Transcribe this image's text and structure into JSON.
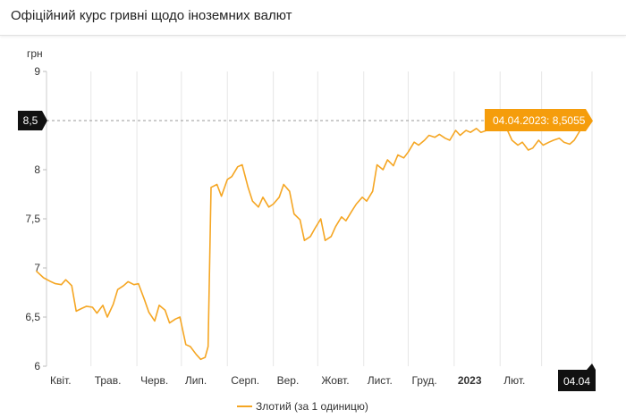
{
  "title": "Офіційний курс гривні щодо іноземних валют",
  "colors": {
    "line": "#f5a623",
    "tooltip": "#f59d0c",
    "marker": "#111111"
  },
  "chart_data": {
    "type": "line",
    "ylabel": "грн",
    "ylim": [
      6,
      9
    ],
    "yticks": [
      {
        "value": 6,
        "label": "6"
      },
      {
        "value": 6.5,
        "label": "6,5"
      },
      {
        "value": 7,
        "label": "7"
      },
      {
        "value": 7.5,
        "label": "7,5"
      },
      {
        "value": 8,
        "label": "8"
      },
      {
        "value": 8.5,
        "label": "8,5"
      },
      {
        "value": 9,
        "label": "9"
      }
    ],
    "xlim": [
      "2022-04-01",
      "2023-04-04"
    ],
    "xticks": [
      {
        "date": "2022-04-01",
        "label": "Квіт.",
        "bold": false
      },
      {
        "date": "2022-05-01",
        "label": "Трав.",
        "bold": false
      },
      {
        "date": "2022-06-01",
        "label": "Черв.",
        "bold": false
      },
      {
        "date": "2022-07-01",
        "label": "Лип.",
        "bold": false
      },
      {
        "date": "2022-08-01",
        "label": "Серп.",
        "bold": false
      },
      {
        "date": "2022-09-01",
        "label": "Вер.",
        "bold": false
      },
      {
        "date": "2022-10-01",
        "label": "Жовт.",
        "bold": false
      },
      {
        "date": "2022-11-01",
        "label": "Лист.",
        "bold": false
      },
      {
        "date": "2022-12-01",
        "label": "Груд.",
        "bold": false
      },
      {
        "date": "2023-01-01",
        "label": "2023",
        "bold": true
      },
      {
        "date": "2023-02-01",
        "label": "Лют.",
        "bold": false
      },
      {
        "date": "2023-03-01",
        "label": "",
        "bold": false
      }
    ],
    "grid": true,
    "legend_position": "bottom-center",
    "series": [
      {
        "name": "Злотий (за 1 одиницю)",
        "x": [
          "2022-03-25",
          "2022-03-30",
          "2022-04-04",
          "2022-04-07",
          "2022-04-11",
          "2022-04-14",
          "2022-04-18",
          "2022-04-21",
          "2022-04-25",
          "2022-04-28",
          "2022-05-02",
          "2022-05-05",
          "2022-05-09",
          "2022-05-12",
          "2022-05-16",
          "2022-05-19",
          "2022-05-23",
          "2022-05-26",
          "2022-05-30",
          "2022-06-02",
          "2022-06-06",
          "2022-06-09",
          "2022-06-13",
          "2022-06-16",
          "2022-06-20",
          "2022-06-23",
          "2022-06-27",
          "2022-06-30",
          "2022-07-04",
          "2022-07-07",
          "2022-07-11",
          "2022-07-14",
          "2022-07-17",
          "2022-07-19",
          "2022-07-21",
          "2022-07-25",
          "2022-07-28",
          "2022-08-01",
          "2022-08-04",
          "2022-08-08",
          "2022-08-11",
          "2022-08-15",
          "2022-08-18",
          "2022-08-22",
          "2022-08-25",
          "2022-08-29",
          "2022-09-01",
          "2022-09-05",
          "2022-09-08",
          "2022-09-12",
          "2022-09-15",
          "2022-09-19",
          "2022-09-22",
          "2022-09-26",
          "2022-09-29",
          "2022-10-03",
          "2022-10-06",
          "2022-10-10",
          "2022-10-13",
          "2022-10-17",
          "2022-10-20",
          "2022-10-24",
          "2022-10-27",
          "2022-10-31",
          "2022-11-03",
          "2022-11-07",
          "2022-11-10",
          "2022-11-14",
          "2022-11-17",
          "2022-11-21",
          "2022-11-24",
          "2022-11-28",
          "2022-12-01",
          "2022-12-05",
          "2022-12-08",
          "2022-12-12",
          "2022-12-15",
          "2022-12-19",
          "2022-12-22",
          "2022-12-26",
          "2022-12-29",
          "2023-01-02",
          "2023-01-05",
          "2023-01-09",
          "2023-01-12",
          "2023-01-16",
          "2023-01-19",
          "2023-01-23",
          "2023-01-26",
          "2023-01-30",
          "2023-02-02",
          "2023-02-06",
          "2023-02-09",
          "2023-02-13",
          "2023-02-16",
          "2023-02-20",
          "2023-02-23",
          "2023-02-27",
          "2023-03-02",
          "2023-03-06",
          "2023-03-09",
          "2023-03-13",
          "2023-03-16",
          "2023-03-20",
          "2023-03-23",
          "2023-03-27",
          "2023-03-30",
          "2023-04-04"
        ],
        "values": [
          6.97,
          6.9,
          6.86,
          6.84,
          6.83,
          6.88,
          6.82,
          6.56,
          6.59,
          6.61,
          6.6,
          6.54,
          6.62,
          6.5,
          6.63,
          6.78,
          6.82,
          6.86,
          6.83,
          6.84,
          6.68,
          6.55,
          6.46,
          6.62,
          6.57,
          6.44,
          6.48,
          6.5,
          6.22,
          6.2,
          6.12,
          6.07,
          6.09,
          6.2,
          7.82,
          7.85,
          7.73,
          7.9,
          7.93,
          8.03,
          8.05,
          7.82,
          7.68,
          7.62,
          7.72,
          7.62,
          7.65,
          7.72,
          7.85,
          7.78,
          7.55,
          7.49,
          7.28,
          7.32,
          7.4,
          7.5,
          7.28,
          7.32,
          7.42,
          7.52,
          7.48,
          7.58,
          7.65,
          7.72,
          7.68,
          7.78,
          8.05,
          8.0,
          8.1,
          8.04,
          8.15,
          8.12,
          8.18,
          8.28,
          8.25,
          8.3,
          8.35,
          8.33,
          8.36,
          8.32,
          8.3,
          8.4,
          8.35,
          8.4,
          8.38,
          8.42,
          8.38,
          8.4,
          8.41,
          8.44,
          8.42,
          8.4,
          8.3,
          8.25,
          8.28,
          8.2,
          8.22,
          8.3,
          8.25,
          8.28,
          8.3,
          8.32,
          8.28,
          8.26,
          8.3,
          8.4,
          8.42,
          8.5055
        ]
      }
    ],
    "annotations": {
      "tooltip": "04.04.2023: 8,5055",
      "y_marker": {
        "value": 8.5,
        "label": "8,5"
      },
      "x_marker": {
        "date": "2023-04-04",
        "label": "04.04"
      }
    }
  }
}
